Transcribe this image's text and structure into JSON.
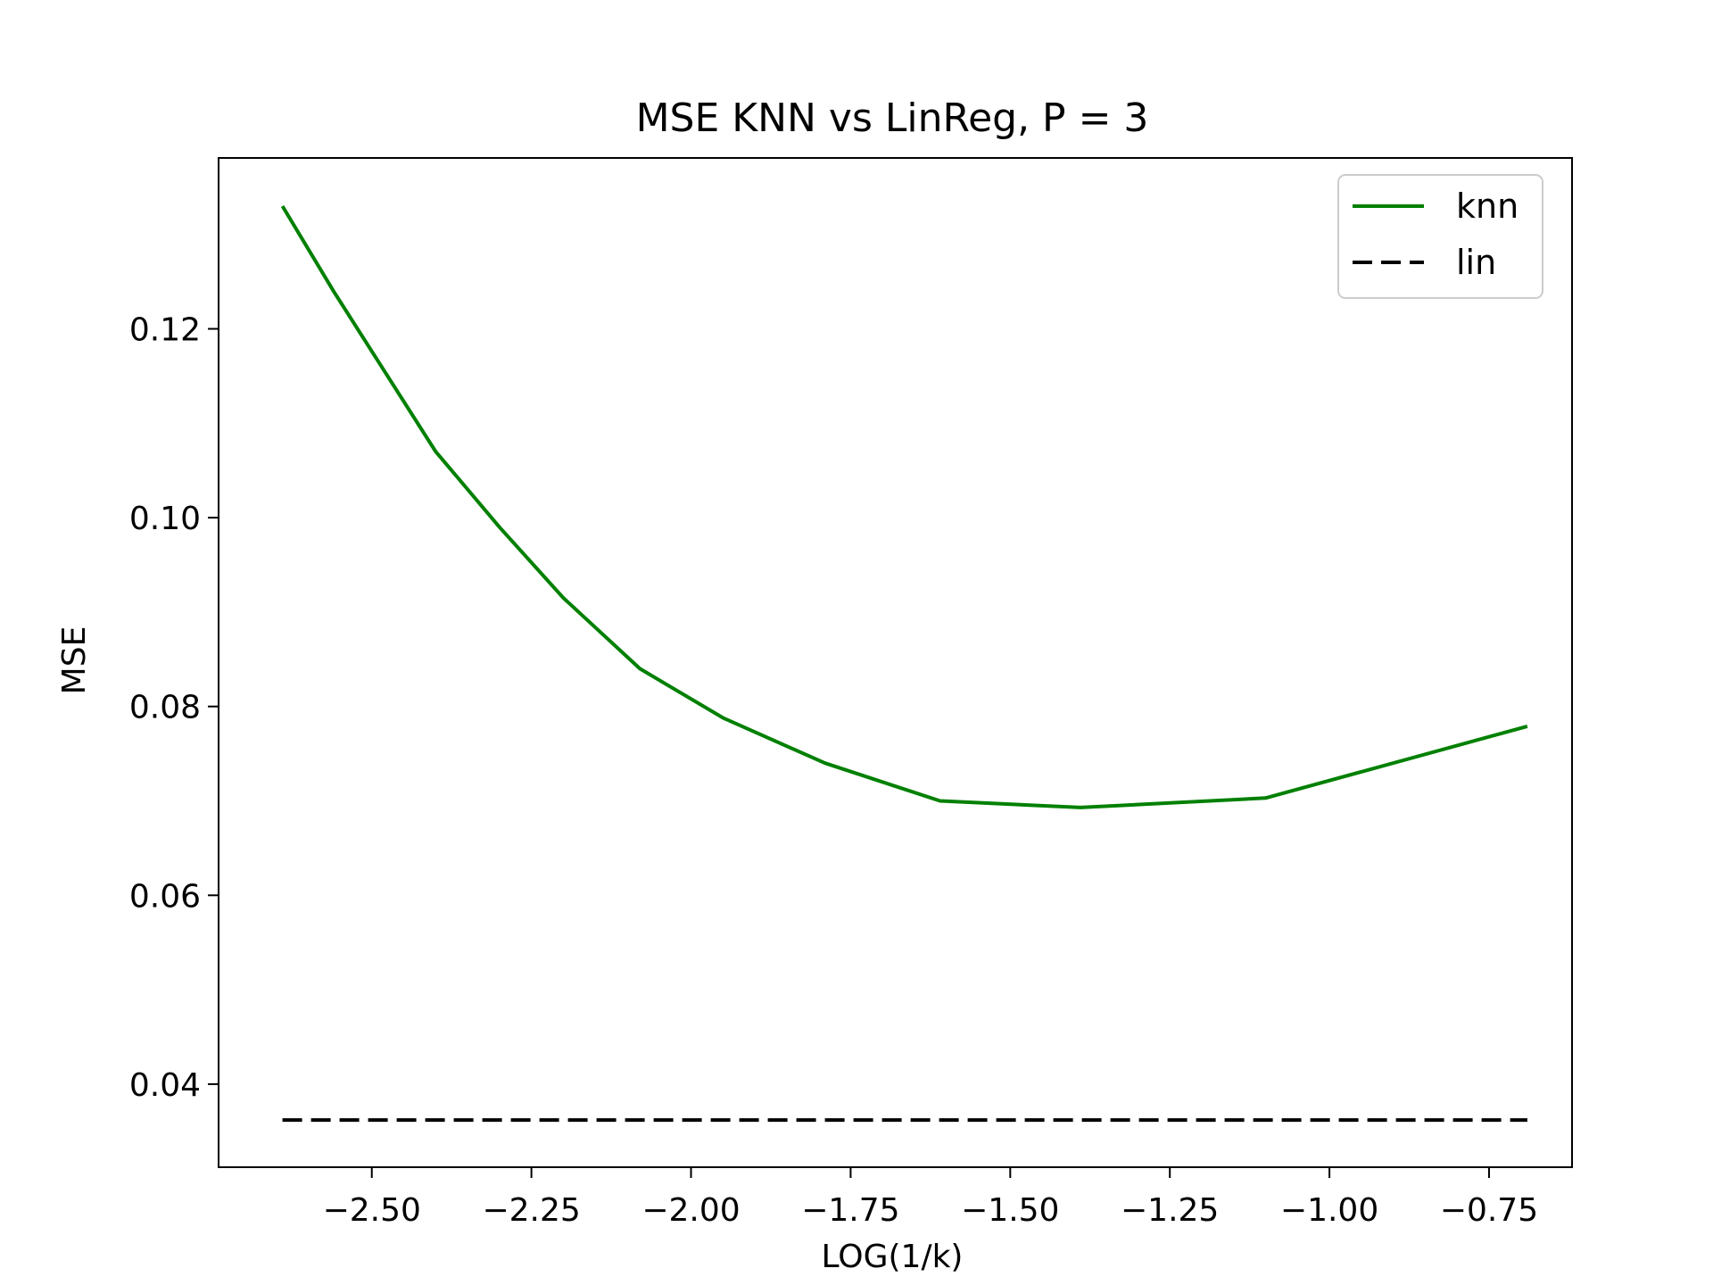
{
  "chart_data": {
    "type": "line",
    "title": "MSE KNN vs LinReg, P = 3",
    "xlabel": "LOG(1/k)",
    "ylabel": "MSE",
    "xlim": [
      -2.74,
      -0.62
    ],
    "ylim": [
      0.0312,
      0.1381
    ],
    "xticks": [
      -2.5,
      -2.25,
      -2.0,
      -1.75,
      -1.5,
      -1.25,
      -1.0,
      -0.75
    ],
    "xtick_labels": [
      "−2.50",
      "−2.25",
      "−2.00",
      "−1.75",
      "−1.50",
      "−1.25",
      "−1.00",
      "−0.75"
    ],
    "yticks": [
      0.04,
      0.06,
      0.08,
      0.1,
      0.12
    ],
    "ytick_labels": [
      "0.04",
      "0.06",
      "0.08",
      "0.10",
      "0.12"
    ],
    "grid": false,
    "legend": "top-right",
    "series": [
      {
        "name": "knn",
        "color": "#008000",
        "style": "solid",
        "x": [
          -2.64,
          -2.56,
          -2.48,
          -2.4,
          -2.3,
          -2.2,
          -2.08,
          -1.95,
          -1.79,
          -1.61,
          -1.39,
          -1.1,
          -0.69
        ],
        "y": [
          0.133,
          0.124,
          0.1155,
          0.107,
          0.099,
          0.0915,
          0.084,
          0.0788,
          0.074,
          0.07,
          0.0693,
          0.0703,
          0.0779
        ]
      },
      {
        "name": "lin",
        "color": "#000000",
        "style": "dashed",
        "x": [
          -2.64,
          -0.69
        ],
        "y": [
          0.0362,
          0.0362
        ]
      }
    ]
  }
}
